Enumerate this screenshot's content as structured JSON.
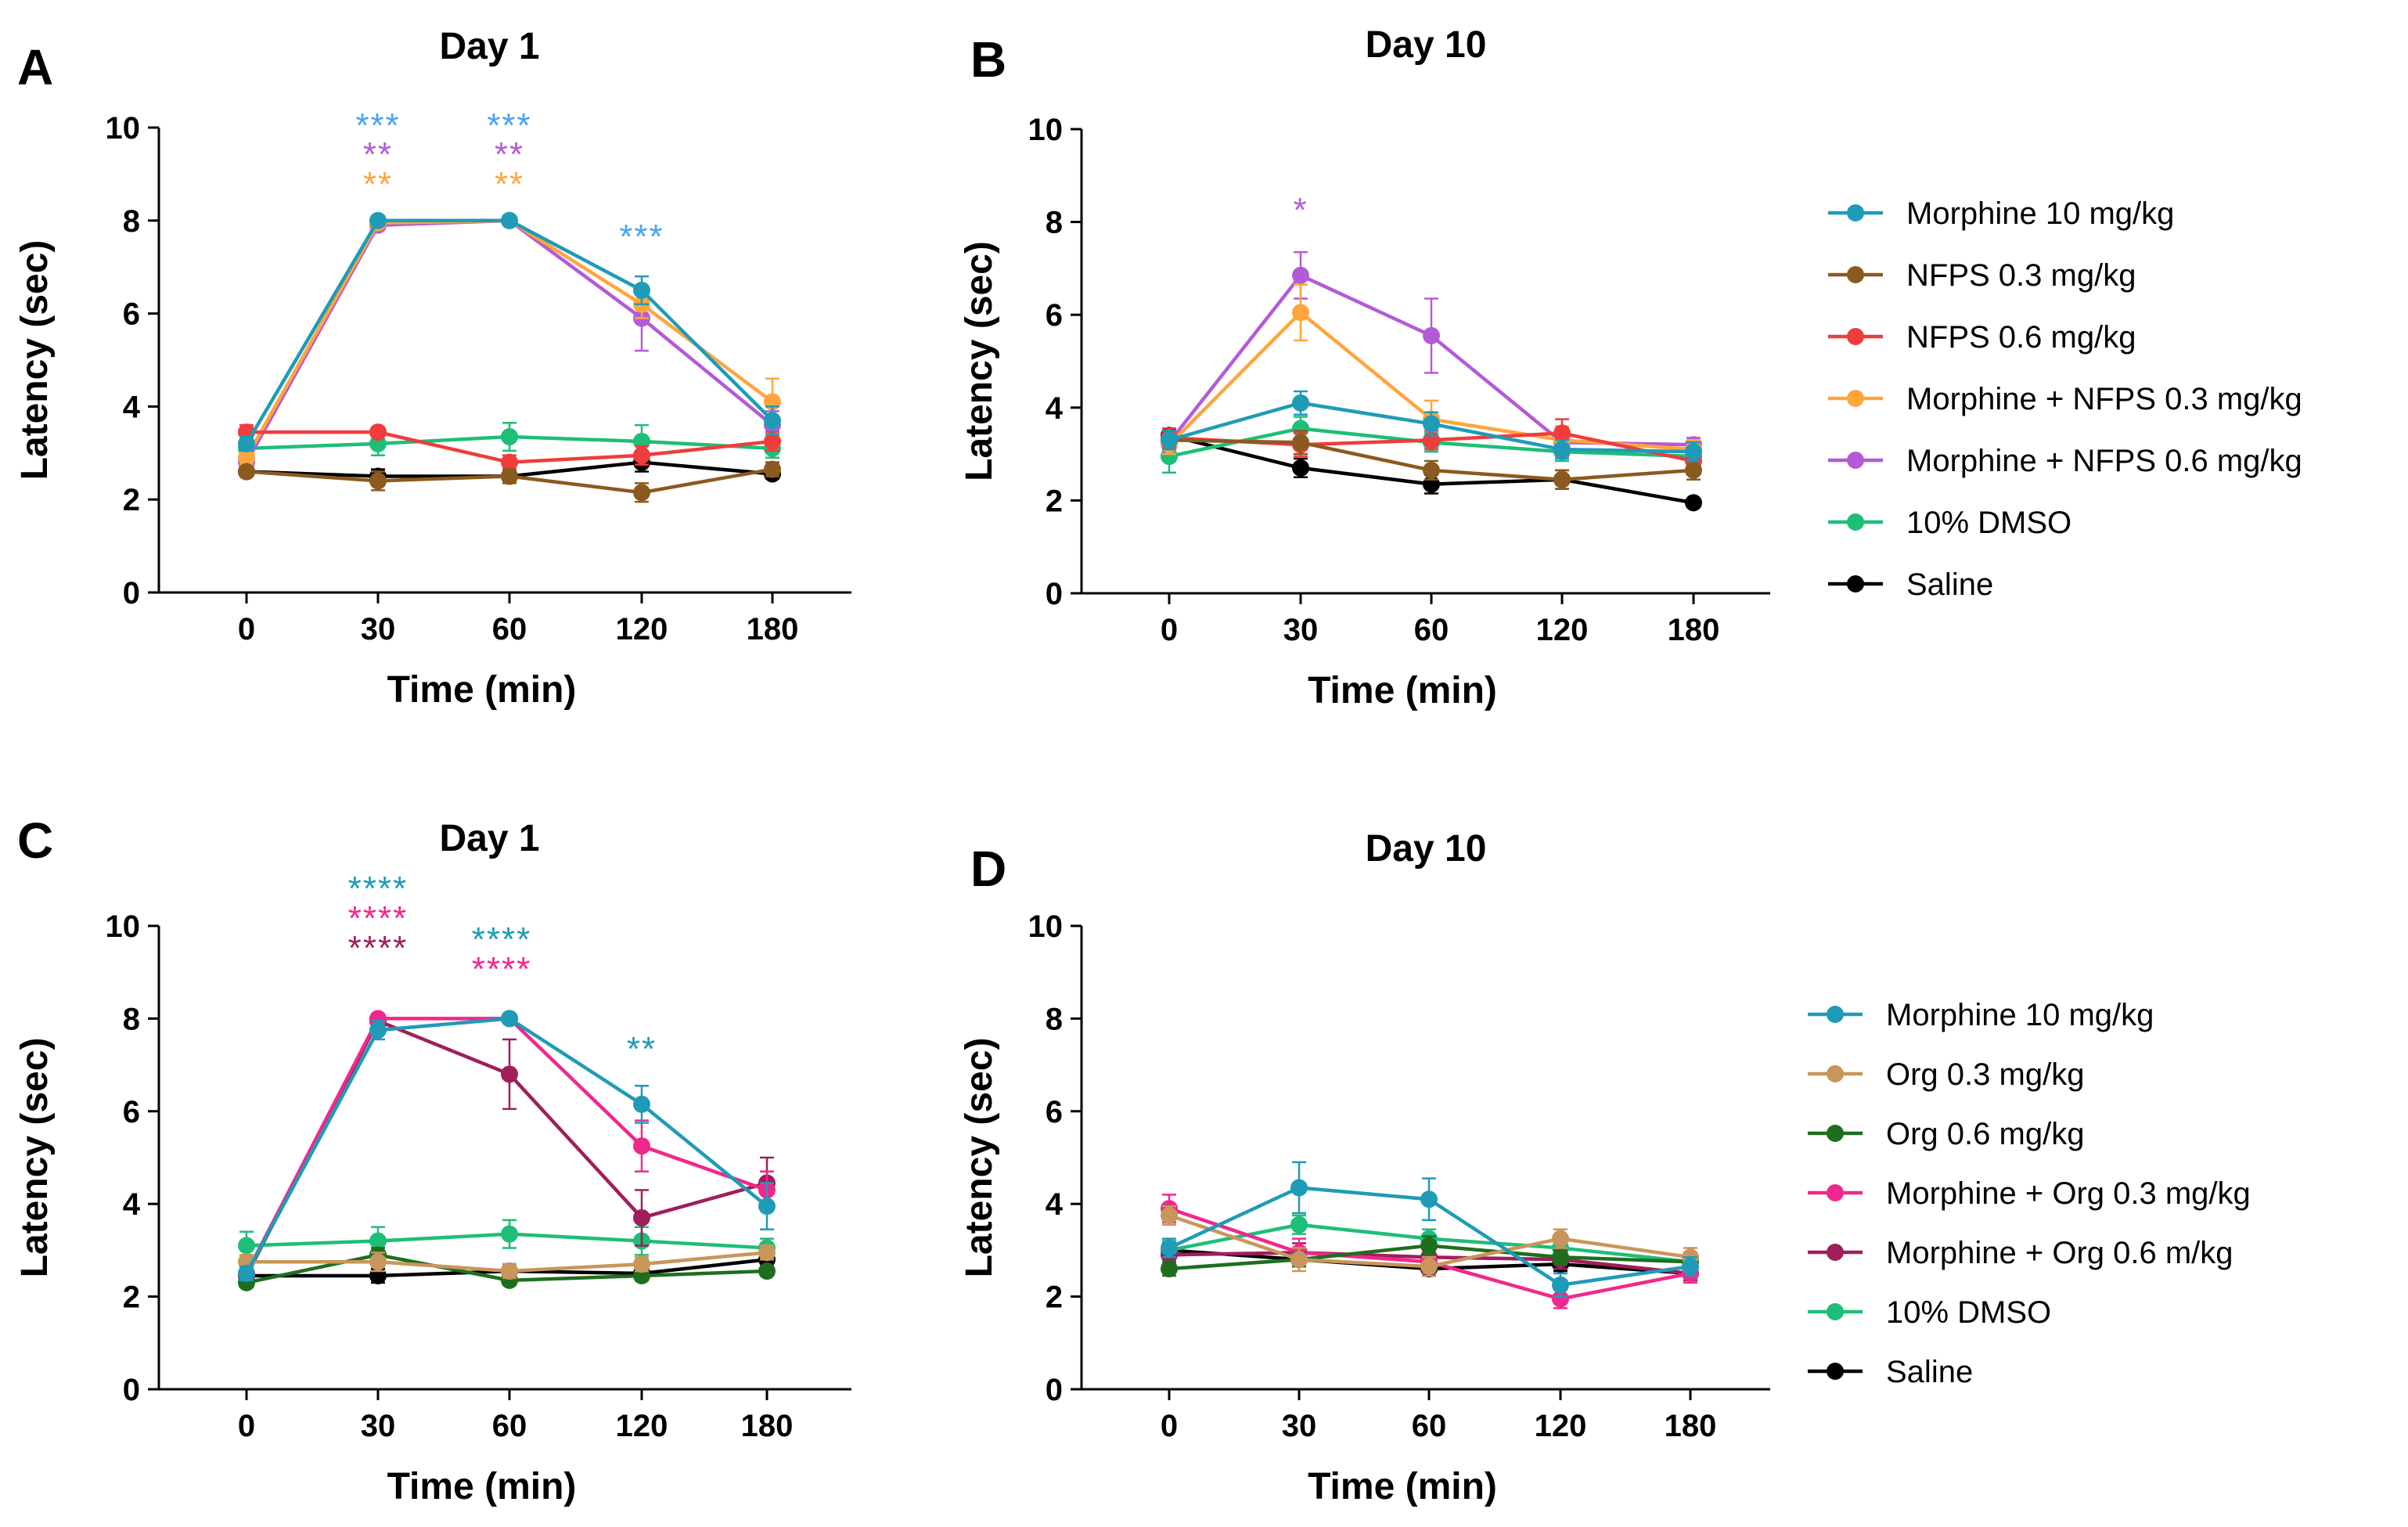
{
  "chart_data": [
    {
      "type": "line",
      "panel": "A",
      "title": "Day 1",
      "xlabel": "Time (min)",
      "ylabel": "Latency (sec)",
      "categories": [
        "0",
        "30",
        "60",
        "120",
        "180"
      ],
      "yticks": [
        "0",
        "2",
        "4",
        "6",
        "8",
        "10"
      ],
      "ylim": [
        0,
        10
      ],
      "series": [
        {
          "name": "Morphine 10 mg/kg",
          "color": "#1f9bb7",
          "values": [
            3.2,
            8.0,
            8.0,
            6.5,
            3.7
          ],
          "errors": [
            0.15,
            0.1,
            0.1,
            0.3,
            0.3
          ]
        },
        {
          "name": "NFPS 0.3 mg/kg",
          "color": "#8b5a1e",
          "values": [
            2.6,
            2.4,
            2.5,
            2.15,
            2.65
          ],
          "errors": [
            0.1,
            0.2,
            0.15,
            0.2,
            0.15
          ]
        },
        {
          "name": "NFPS 0.6 mg/kg",
          "color": "#f03c3c",
          "values": [
            3.45,
            3.45,
            2.8,
            2.95,
            3.25
          ],
          "errors": [
            0.15,
            0.1,
            0.15,
            0.2,
            0.2
          ]
        },
        {
          "name": "Morphine + NFPS 0.3 mg/kg",
          "color": "#ffa53c",
          "values": [
            2.9,
            7.95,
            8.0,
            6.2,
            4.1
          ],
          "errors": [
            0.15,
            0.1,
            0.1,
            0.3,
            0.5
          ]
        },
        {
          "name": "Morphine + NFPS 0.6 mg/kg",
          "color": "#b45ad8",
          "values": [
            2.8,
            7.9,
            8.0,
            5.9,
            3.6
          ],
          "errors": [
            0.15,
            0.1,
            0.1,
            0.7,
            0.3
          ]
        },
        {
          "name": "10% DMSO",
          "color": "#1ebe78",
          "values": [
            3.1,
            3.2,
            3.35,
            3.25,
            3.1
          ],
          "errors": [
            0.15,
            0.25,
            0.3,
            0.35,
            0.2
          ]
        },
        {
          "name": "Saline",
          "color": "#000000",
          "values": [
            2.6,
            2.5,
            2.5,
            2.8,
            2.55
          ],
          "errors": [
            0.1,
            0.15,
            0.1,
            0.2,
            0.1
          ]
        }
      ],
      "annotations": [
        {
          "x": "30",
          "text": "***",
          "color": "#4aa3f0",
          "row": 0
        },
        {
          "x": "30",
          "text": "**",
          "color": "#b45ad8",
          "row": 1
        },
        {
          "x": "30",
          "text": "**",
          "color": "#ffa53c",
          "row": 2
        },
        {
          "x": "60",
          "text": "***",
          "color": "#4aa3f0",
          "row": 0
        },
        {
          "x": "60",
          "text": "**",
          "color": "#b45ad8",
          "row": 1
        },
        {
          "x": "60",
          "text": "**",
          "color": "#ffa53c",
          "row": 2
        },
        {
          "x": "120",
          "text": "***",
          "color": "#4aa3f0",
          "row": 2
        }
      ]
    },
    {
      "type": "line",
      "panel": "B",
      "title": "Day 10",
      "xlabel": "Time (min)",
      "ylabel": "Latency (sec)",
      "categories": [
        "0",
        "30",
        "60",
        "120",
        "180"
      ],
      "yticks": [
        "0",
        "2",
        "4",
        "6",
        "8",
        "10"
      ],
      "ylim": [
        0,
        10
      ],
      "series": [
        {
          "name": "Morphine 10 mg/kg",
          "color": "#1f9bb7",
          "values": [
            3.3,
            4.1,
            3.65,
            3.1,
            3.05
          ],
          "errors": [
            0.2,
            0.25,
            0.25,
            0.2,
            0.2
          ]
        },
        {
          "name": "NFPS 0.3 mg/kg",
          "color": "#8b5a1e",
          "values": [
            3.3,
            3.25,
            2.65,
            2.45,
            2.65
          ],
          "errors": [
            0.2,
            0.25,
            0.2,
            0.2,
            0.2
          ]
        },
        {
          "name": "NFPS 0.6 mg/kg",
          "color": "#f03c3c",
          "values": [
            3.35,
            3.2,
            3.3,
            3.45,
            2.85
          ],
          "errors": [
            0.2,
            0.25,
            0.2,
            0.3,
            0.2
          ]
        },
        {
          "name": "Morphine + NFPS 0.3 mg/kg",
          "color": "#ffa53c",
          "values": [
            3.2,
            6.05,
            3.75,
            3.3,
            3.1
          ],
          "errors": [
            0.2,
            0.6,
            0.4,
            0.3,
            0.2
          ]
        },
        {
          "name": "Morphine + NFPS 0.6 mg/kg",
          "color": "#b45ad8",
          "values": [
            3.25,
            6.85,
            5.55,
            3.25,
            3.2
          ],
          "errors": [
            0.2,
            0.5,
            0.8,
            0.3,
            0.15
          ]
        },
        {
          "name": "10% DMSO",
          "color": "#1ebe78",
          "values": [
            2.95,
            3.55,
            3.25,
            3.05,
            2.95
          ],
          "errors": [
            0.35,
            0.25,
            0.2,
            0.2,
            0.15
          ]
        },
        {
          "name": "Saline",
          "color": "#000000",
          "values": [
            3.4,
            2.7,
            2.35,
            2.45,
            1.95
          ],
          "errors": [
            0.15,
            0.2,
            0.2,
            0.2,
            0.05
          ]
        }
      ],
      "annotations": [
        {
          "x": "30",
          "text": "*",
          "color": "#b45ad8",
          "row": 2
        }
      ]
    },
    {
      "type": "line",
      "panel": "C",
      "title": "Day 1",
      "xlabel": "Time (min)",
      "ylabel": "Latency (sec)",
      "categories": [
        "0",
        "30",
        "60",
        "120",
        "180"
      ],
      "yticks": [
        "0",
        "2",
        "4",
        "6",
        "8",
        "10"
      ],
      "ylim": [
        0,
        10
      ],
      "series": [
        {
          "name": "Morphine 10 mg/kg",
          "color": "#1f9bb7",
          "values": [
            2.5,
            7.75,
            8.0,
            6.15,
            3.95
          ],
          "errors": [
            0.15,
            0.2,
            0.1,
            0.4,
            0.5
          ]
        },
        {
          "name": "Org 0.3 mg/kg",
          "color": "#c8965a",
          "values": [
            2.75,
            2.75,
            2.55,
            2.7,
            2.95
          ],
          "errors": [
            0.15,
            0.2,
            0.15,
            0.15,
            0.15
          ]
        },
        {
          "name": "Org 0.6 mg/kg",
          "color": "#1e6e1e",
          "values": [
            2.3,
            2.9,
            2.35,
            2.45,
            2.55
          ],
          "errors": [
            0.1,
            0.15,
            0.1,
            0.1,
            0.1
          ]
        },
        {
          "name": "Morphine + Org 0.3 mg/kg",
          "color": "#f0288c",
          "values": [
            2.5,
            8.0,
            8.0,
            5.25,
            4.3
          ],
          "errors": [
            0.15,
            0.1,
            0.1,
            0.55,
            0.4
          ]
        },
        {
          "name": "Morphine + Org 0.6 m/kg",
          "color": "#a01e5a",
          "values": [
            2.45,
            7.95,
            6.8,
            3.7,
            4.45
          ],
          "errors": [
            0.15,
            0.1,
            0.75,
            0.6,
            0.55
          ]
        },
        {
          "name": "10% DMSO",
          "color": "#1ebe78",
          "values": [
            3.1,
            3.2,
            3.35,
            3.2,
            3.05
          ],
          "errors": [
            0.3,
            0.3,
            0.3,
            0.3,
            0.2
          ]
        },
        {
          "name": "Saline",
          "color": "#000000",
          "values": [
            2.45,
            2.45,
            2.55,
            2.5,
            2.8
          ],
          "errors": [
            0.15,
            0.15,
            0.15,
            0.15,
            0.15
          ]
        }
      ],
      "annotations": [
        {
          "x": "30",
          "text": "****",
          "color": "#1f9bb7",
          "row": 0
        },
        {
          "x": "30",
          "text": "****",
          "color": "#f0288c",
          "row": 1
        },
        {
          "x": "30",
          "text": "****",
          "color": "#a01e5a",
          "row": 2
        },
        {
          "x": "60",
          "text": "****",
          "color": "#1f9bb7",
          "row": 1
        },
        {
          "x": "60",
          "text": "****",
          "color": "#f0288c",
          "row": 2
        },
        {
          "x": "120",
          "text": "**",
          "color": "#1f9bb7",
          "row": 3
        }
      ]
    },
    {
      "type": "line",
      "panel": "D",
      "title": "Day 10",
      "xlabel": "Time (min)",
      "ylabel": "Latency (sec)",
      "categories": [
        "0",
        "30",
        "60",
        "120",
        "180"
      ],
      "yticks": [
        "0",
        "2",
        "4",
        "6",
        "8",
        "10"
      ],
      "ylim": [
        0,
        10
      ],
      "series": [
        {
          "name": "Morphine 10 mg/kg",
          "color": "#1f9bb7",
          "values": [
            3.05,
            4.35,
            4.1,
            2.25,
            2.65
          ],
          "errors": [
            0.2,
            0.55,
            0.45,
            0.25,
            0.2
          ]
        },
        {
          "name": "Org 0.3 mg/kg",
          "color": "#c8965a",
          "values": [
            3.75,
            2.8,
            2.65,
            3.25,
            2.85
          ],
          "errors": [
            0.2,
            0.25,
            0.2,
            0.2,
            0.2
          ]
        },
        {
          "name": "Org 0.6 mg/kg",
          "color": "#1e6e1e",
          "values": [
            2.6,
            2.8,
            3.1,
            2.85,
            2.75
          ],
          "errors": [
            0.15,
            0.15,
            0.2,
            0.15,
            0.15
          ]
        },
        {
          "name": "Morphine + Org 0.3 mg/kg",
          "color": "#f0288c",
          "values": [
            3.9,
            2.95,
            2.75,
            1.95,
            2.5
          ],
          "errors": [
            0.3,
            0.3,
            0.25,
            0.2,
            0.2
          ]
        },
        {
          "name": "Morphine + Org 0.6 m/kg",
          "color": "#a01e5a",
          "values": [
            2.9,
            2.95,
            2.85,
            2.8,
            2.5
          ],
          "errors": [
            0.2,
            0.2,
            0.25,
            0.2,
            0.15
          ]
        },
        {
          "name": "10% DMSO",
          "color": "#1ebe78",
          "values": [
            3.0,
            3.55,
            3.25,
            3.05,
            2.75
          ],
          "errors": [
            0.2,
            0.2,
            0.2,
            0.2,
            0.2
          ]
        },
        {
          "name": "Saline",
          "color": "#000000",
          "values": [
            3.0,
            2.8,
            2.6,
            2.7,
            2.5
          ],
          "errors": [
            0.15,
            0.15,
            0.15,
            0.15,
            0.15
          ]
        }
      ],
      "annotations": []
    }
  ]
}
